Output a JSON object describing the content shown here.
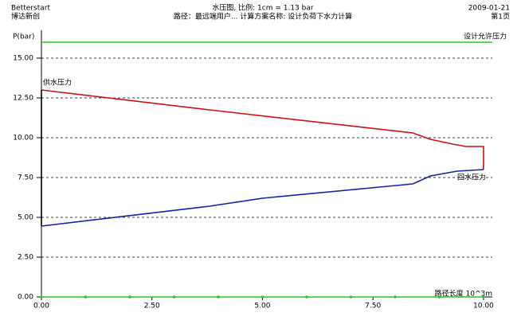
{
  "header": {
    "left": [
      "Betterstart",
      "博达新创"
    ],
    "center": [
      "水压图, 比例: 1cm = 1.13 bar",
      "路径：最远端用户... 计算方案名称: 设计负荷下水力计算"
    ],
    "right": [
      "2009-01-21",
      "第1页"
    ]
  },
  "chart_data": {
    "type": "line",
    "y_label": "P(bar)",
    "x_label": "路径长度 10^3m",
    "xlim": [
      0,
      10.2
    ],
    "ylim": [
      0,
      16.5
    ],
    "xticks": [
      {
        "value": 0,
        "label": "0.00"
      },
      {
        "value": 2.5,
        "label": "2.50"
      },
      {
        "value": 5,
        "label": "5.00"
      },
      {
        "value": 7.5,
        "label": "7.50"
      },
      {
        "value": 10,
        "label": "10.00"
      }
    ],
    "yticks": [
      {
        "value": 0,
        "label": "0.00"
      },
      {
        "value": 2.5,
        "label": "2.50"
      },
      {
        "value": 5,
        "label": "5.00"
      },
      {
        "value": 7.5,
        "label": "7.50"
      },
      {
        "value": 10,
        "label": "10.00"
      },
      {
        "value": 12.5,
        "label": "12.50"
      },
      {
        "value": 15,
        "label": "15.00"
      }
    ],
    "grid": true,
    "annotations": [
      "设计允许压力",
      "供水压力",
      "回水压力"
    ],
    "series": [
      {
        "color": "#22cc22",
        "x": [
          0,
          10.2
        ],
        "values": [
          16,
          16
        ]
      },
      {
        "color": "#cc1111",
        "x": [
          0,
          3.8,
          8.4,
          8.8,
          9.3,
          9.6,
          10,
          10
        ],
        "values": [
          13.0,
          11.75,
          10.3,
          9.9,
          9.6,
          9.45,
          9.45,
          8.0
        ]
      },
      {
        "color": "#1122aa",
        "x": [
          0,
          3.8,
          5,
          8.4,
          8.8,
          9.4,
          10
        ],
        "values": [
          4.45,
          5.7,
          6.2,
          7.1,
          7.6,
          7.9,
          8.0
        ]
      },
      {
        "color": "#000000",
        "x": [
          0,
          0
        ],
        "values": [
          4.45,
          13.0
        ]
      },
      {
        "color": "#22cc22",
        "markers": true,
        "x": [
          0,
          1,
          2,
          3,
          4,
          5,
          6,
          7,
          8,
          9,
          10
        ],
        "values": [
          0,
          0,
          0,
          0,
          0,
          0,
          0,
          0,
          0,
          0,
          0
        ]
      }
    ]
  }
}
